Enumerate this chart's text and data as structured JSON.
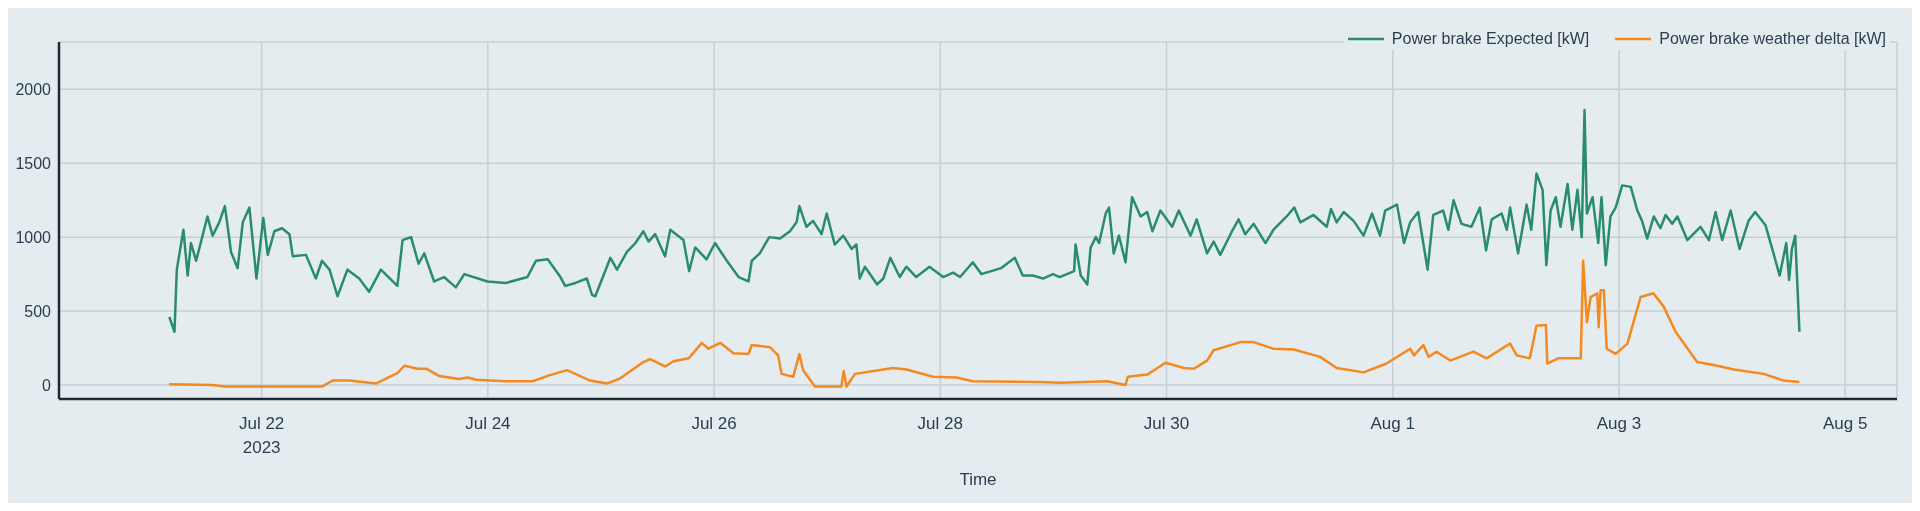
{
  "chart_data": {
    "type": "line",
    "xlabel": "Time",
    "legend": "top right",
    "grid": true,
    "line_style": "solid",
    "xlim": [
      "2023-07-20T05:00",
      "2023-08-05T11:00"
    ],
    "xticks": [
      {
        "value": "2023-07-22",
        "label": "Jul 22\n2023"
      },
      {
        "value": "2023-07-24",
        "label": "Jul 24"
      },
      {
        "value": "2023-07-26",
        "label": "Jul 26"
      },
      {
        "value": "2023-07-28",
        "label": "Jul 28"
      },
      {
        "value": "2023-07-30",
        "label": "Jul 30"
      },
      {
        "value": "2023-08-01",
        "label": "Aug 1"
      },
      {
        "value": "2023-08-03",
        "label": "Aug 3"
      },
      {
        "value": "2023-08-05",
        "label": "Aug 5"
      }
    ],
    "ylim": [
      -95,
      2320
    ],
    "yticks": [
      0,
      500,
      1000,
      1500,
      2000
    ],
    "series": [
      {
        "name": "Power brake Expected [kW]",
        "color": "#2a8c6e",
        "x": [
          "2023-07-21T04:24",
          "2023-07-21T05:30",
          "2023-07-21T06:00",
          "2023-07-21T07:24",
          "2023-07-21T08:18",
          "2023-07-21T09:00",
          "2023-07-21T10:06",
          "2023-07-21T12:30",
          "2023-07-21T13:36",
          "2023-07-21T15:00",
          "2023-07-21T16:12",
          "2023-07-21T17:30",
          "2023-07-21T18:54",
          "2023-07-21T20:00",
          "2023-07-21T21:24",
          "2023-07-21T22:54",
          "2023-07-22T00:21",
          "2023-07-22T01:18",
          "2023-07-22T02:42",
          "2023-07-22T04:18",
          "2023-07-22T05:54",
          "2023-07-22T06:36",
          "2023-07-22T09:24",
          "2023-07-22T11:30",
          "2023-07-22T12:48",
          "2023-07-22T14:24",
          "2023-07-22T16:06",
          "2023-07-22T18:12",
          "2023-07-22T20:42",
          "2023-07-22T22:48",
          "2023-07-23T01:18",
          "2023-07-23T04:48",
          "2023-07-23T05:54",
          "2023-07-23T07:42",
          "2023-07-23T09:18",
          "2023-07-23T10:30",
          "2023-07-23T12:36",
          "2023-07-23T14:42",
          "2023-07-23T17:12",
          "2023-07-23T19:00",
          "2023-07-23T23:54",
          "2023-07-24T03:48",
          "2023-07-24T08:24",
          "2023-07-24T10:12",
          "2023-07-24T12:42",
          "2023-07-24T15:24",
          "2023-07-24T16:24",
          "2023-07-24T18:36",
          "2023-07-24T21:00",
          "2023-07-24T22:06",
          "2023-07-24T22:48",
          "2023-07-25T02:00",
          "2023-07-25T03:24",
          "2023-07-25T05:30",
          "2023-07-25T07:18",
          "2023-07-25T09:00",
          "2023-07-25T10:06",
          "2023-07-25T11:30",
          "2023-07-25T13:36",
          "2023-07-25T14:42",
          "2023-07-25T17:30",
          "2023-07-25T18:42",
          "2023-07-25T20:00",
          "2023-07-25T22:24",
          "2023-07-26T00:12",
          "2023-07-26T02:42",
          "2023-07-26T05:12",
          "2023-07-26T07:18",
          "2023-07-26T08:00",
          "2023-07-26T09:42",
          "2023-07-26T11:42",
          "2023-07-26T14:00",
          "2023-07-26T16:06",
          "2023-07-26T17:30",
          "2023-07-26T18:06",
          "2023-07-26T19:36",
          "2023-07-26T21:00",
          "2023-07-26T22:48",
          "2023-07-26T23:54",
          "2023-07-27T01:36",
          "2023-07-27T03:24",
          "2023-07-27T05:12",
          "2023-07-27T06:12",
          "2023-07-27T06:54",
          "2023-07-27T08:00",
          "2023-07-27T10:36",
          "2023-07-27T11:54",
          "2023-07-27T13:24",
          "2023-07-27T15:24",
          "2023-07-27T16:48",
          "2023-07-27T18:54",
          "2023-07-27T21:42",
          "2023-07-28T00:36",
          "2023-07-28T02:42",
          "2023-07-28T04:12",
          "2023-07-28T06:54",
          "2023-07-28T08:42",
          "2023-07-28T12:54",
          "2023-07-28T15:48",
          "2023-07-28T17:30",
          "2023-07-28T19:36",
          "2023-07-28T21:48",
          "2023-07-28T23:54",
          "2023-07-29T01:18",
          "2023-07-29T04:24",
          "2023-07-29T04:42",
          "2023-07-29T05:48",
          "2023-07-29T07:12",
          "2023-07-29T07:54",
          "2023-07-29T09:00",
          "2023-07-29T09:42",
          "2023-07-29T11:06",
          "2023-07-29T11:48",
          "2023-07-29T12:48",
          "2023-07-29T13:54",
          "2023-07-29T15:18",
          "2023-07-29T16:42",
          "2023-07-29T18:30",
          "2023-07-29T19:54",
          "2023-07-29T21:00",
          "2023-07-29T22:42",
          "2023-07-30T01:12",
          "2023-07-30T02:36",
          "2023-07-30T05:06",
          "2023-07-30T06:24",
          "2023-07-30T08:36",
          "2023-07-30T10:00",
          "2023-07-30T11:24",
          "2023-07-30T13:54",
          "2023-07-30T15:18",
          "2023-07-30T16:42",
          "2023-07-30T18:30",
          "2023-07-30T21:00",
          "2023-07-30T22:42",
          "2023-07-31T01:30",
          "2023-07-31T03:06",
          "2023-07-31T04:24",
          "2023-07-31T07:12",
          "2023-07-31T10:00",
          "2023-07-31T10:54",
          "2023-07-31T12:06",
          "2023-07-31T13:36",
          "2023-07-31T15:42",
          "2023-07-31T17:48",
          "2023-07-31T19:36",
          "2023-07-31T21:18",
          "2023-07-31T22:24",
          "2023-08-01T00:54",
          "2023-08-01T02:24",
          "2023-08-01T03:42",
          "2023-08-01T05:24",
          "2023-08-01T07:24",
          "2023-08-01T08:36",
          "2023-08-01T10:42",
          "2023-08-01T11:48",
          "2023-08-01T12:54",
          "2023-08-01T14:36",
          "2023-08-01T16:42",
          "2023-08-01T18:30",
          "2023-08-01T19:48",
          "2023-08-01T21:00",
          "2023-08-01T23:06",
          "2023-08-02T00:12",
          "2023-08-02T00:54",
          "2023-08-02T02:36",
          "2023-08-02T04:24",
          "2023-08-02T05:24",
          "2023-08-02T06:30",
          "2023-08-02T07:48",
          "2023-08-02T08:36",
          "2023-08-02T09:30",
          "2023-08-02T10:36",
          "2023-08-02T11:36",
          "2023-08-02T13:06",
          "2023-08-02T14:06",
          "2023-08-02T15:12",
          "2023-08-02T16:06",
          "2023-08-02T16:42",
          "2023-08-02T17:12",
          "2023-08-02T18:24",
          "2023-08-02T19:36",
          "2023-08-02T20:18",
          "2023-08-02T21:12",
          "2023-08-02T22:12",
          "2023-08-02T23:18",
          "2023-08-03T00:42",
          "2023-08-03T02:30",
          "2023-08-03T03:54",
          "2023-08-03T04:54",
          "2023-08-03T06:00",
          "2023-08-03T07:24",
          "2023-08-03T08:48",
          "2023-08-03T09:54",
          "2023-08-03T11:18",
          "2023-08-03T12:24",
          "2023-08-03T14:30",
          "2023-08-03T17:18",
          "2023-08-03T19:06",
          "2023-08-03T20:30",
          "2023-08-03T21:54",
          "2023-08-03T23:42",
          "2023-08-04T01:36",
          "2023-08-04T03:30",
          "2023-08-04T04:54",
          "2023-08-04T07:06",
          "2023-08-04T08:48",
          "2023-08-04T10:06",
          "2023-08-04T11:30",
          "2023-08-04T12:06",
          "2023-08-04T12:42",
          "2023-08-04T13:24",
          "2023-08-04T14:18"
        ],
        "values": [
          460,
          360,
          780,
          1050,
          740,
          960,
          840,
          1140,
          1010,
          1100,
          1210,
          900,
          790,
          1100,
          1200,
          720,
          1130,
          880,
          1040,
          1060,
          1020,
          870,
          880,
          720,
          840,
          780,
          600,
          780,
          720,
          630,
          780,
          670,
          980,
          1000,
          820,
          890,
          700,
          730,
          660,
          750,
          700,
          690,
          730,
          840,
          850,
          730,
          670,
          690,
          720,
          610,
          600,
          860,
          780,
          900,
          960,
          1040,
          970,
          1020,
          870,
          1050,
          980,
          770,
          930,
          850,
          960,
          840,
          730,
          700,
          840,
          890,
          1000,
          990,
          1040,
          1100,
          1210,
          1070,
          1110,
          1020,
          1160,
          950,
          1010,
          920,
          950,
          720,
          800,
          680,
          720,
          860,
          730,
          800,
          730,
          800,
          730,
          760,
          730,
          830,
          750,
          790,
          860,
          740,
          740,
          720,
          750,
          730,
          770,
          950,
          740,
          680,
          930,
          1000,
          960,
          1160,
          1200,
          890,
          1010,
          830,
          1270,
          1140,
          1170,
          1040,
          1180,
          1070,
          1180,
          1010,
          1120,
          890,
          970,
          880,
          1040,
          1120,
          1020,
          1090,
          960,
          1050,
          1140,
          1200,
          1100,
          1150,
          1070,
          1190,
          1100,
          1170,
          1110,
          1010,
          1160,
          1010,
          1180,
          1220,
          960,
          1100,
          1170,
          780,
          1150,
          1180,
          1050,
          1250,
          1090,
          1070,
          1200,
          910,
          1120,
          1160,
          1050,
          1200,
          890,
          1220,
          1050,
          1430,
          1320,
          810,
          1180,
          1270,
          1070,
          1360,
          1050,
          1320,
          1000,
          1860,
          1160,
          1270,
          960,
          1270,
          810,
          1140,
          1200,
          1350,
          1340,
          1180,
          1110,
          990,
          1140,
          1060,
          1150,
          1090,
          1140,
          980,
          1070,
          980,
          1170,
          980,
          1180,
          920,
          1110,
          1170,
          1080,
          890,
          740,
          960,
          710,
          920,
          1010,
          360
        ]
      },
      {
        "name": "Power brake weather delta [kW]",
        "color": "#f4891f",
        "x": [
          "2023-07-21T04:24",
          "2023-07-21T13:36",
          "2023-07-21T16:06",
          "2023-07-21T22:06",
          "2023-07-22T12:54",
          "2023-07-22T15:06",
          "2023-07-22T18:36",
          "2023-07-23T00:18",
          "2023-07-23T04:48",
          "2023-07-23T06:18",
          "2023-07-23T09:06",
          "2023-07-23T10:54",
          "2023-07-23T13:42",
          "2023-07-23T17:54",
          "2023-07-23T19:42",
          "2023-07-23T21:30",
          "2023-07-24T03:48",
          "2023-07-24T09:30",
          "2023-07-24T13:00",
          "2023-07-24T16:48",
          "2023-07-24T21:42",
          "2023-07-25T01:18",
          "2023-07-25T04:06",
          "2023-07-25T09:00",
          "2023-07-25T10:24",
          "2023-07-25T13:36",
          "2023-07-25T15:24",
          "2023-07-25T18:36",
          "2023-07-25T21:24",
          "2023-07-25T22:48",
          "2023-07-26T01:18",
          "2023-07-26T04:06",
          "2023-07-26T07:18",
          "2023-07-26T08:00",
          "2023-07-26T11:54",
          "2023-07-26T13:36",
          "2023-07-26T14:18",
          "2023-07-26T16:48",
          "2023-07-26T18:06",
          "2023-07-26T18:54",
          "2023-07-26T21:24",
          "2023-07-27T03:00",
          "2023-07-27T03:30",
          "2023-07-27T04:06",
          "2023-07-27T05:54",
          "2023-07-27T14:00",
          "2023-07-27T16:48",
          "2023-07-27T22:30",
          "2023-07-28T03:24",
          "2023-07-28T06:54",
          "2023-07-28T21:00",
          "2023-07-29T01:30",
          "2023-07-29T11:24",
          "2023-07-29T15:18",
          "2023-07-29T15:48",
          "2023-07-29T19:54",
          "2023-07-29T23:48",
          "2023-07-30T03:42",
          "2023-07-30T05:48",
          "2023-07-30T08:36",
          "2023-07-30T10:00",
          "2023-07-30T15:42",
          "2023-07-30T18:30",
          "2023-07-30T22:42",
          "2023-07-31T03:00",
          "2023-07-31T08:36",
          "2023-07-31T12:06",
          "2023-07-31T17:48",
          "2023-07-31T22:42",
          "2023-08-01T03:42",
          "2023-08-01T04:30",
          "2023-08-01T06:30",
          "2023-08-01T07:36",
          "2023-08-01T09:18",
          "2023-08-01T12:12",
          "2023-08-01T17:06",
          "2023-08-01T19:54",
          "2023-08-02T00:54",
          "2023-08-02T02:18",
          "2023-08-02T05:06",
          "2023-08-02T06:30",
          "2023-08-02T08:30",
          "2023-08-02T08:48",
          "2023-08-02T11:06",
          "2023-08-02T13:06",
          "2023-08-02T15:54",
          "2023-08-02T16:24",
          "2023-08-02T17:12",
          "2023-08-02T18:00",
          "2023-08-02T19:24",
          "2023-08-02T19:42",
          "2023-08-02T20:06",
          "2023-08-02T20:48",
          "2023-08-02T21:24",
          "2023-08-02T23:18",
          "2023-08-03T01:48",
          "2023-08-03T04:36",
          "2023-08-03T07:18",
          "2023-08-03T09:30",
          "2023-08-03T12:00",
          "2023-08-03T16:36",
          "2023-08-03T20:06",
          "2023-08-04T00:24",
          "2023-08-04T06:42",
          "2023-08-04T10:54",
          "2023-08-04T14:18"
        ],
        "values": [
          5,
          0,
          -10,
          -10,
          -10,
          30,
          30,
          10,
          80,
          130,
          110,
          110,
          60,
          40,
          50,
          35,
          25,
          25,
          65,
          100,
          30,
          10,
          45,
          155,
          175,
          125,
          160,
          180,
          285,
          245,
          285,
          215,
          210,
          270,
          255,
          200,
          75,
          55,
          210,
          100,
          -10,
          -10,
          95,
          -10,
          75,
          115,
          105,
          55,
          50,
          25,
          20,
          15,
          25,
          0,
          55,
          70,
          150,
          115,
          110,
          165,
          235,
          290,
          290,
          245,
          240,
          190,
          115,
          85,
          145,
          245,
          200,
          270,
          190,
          225,
          165,
          225,
          180,
          280,
          200,
          180,
          400,
          405,
          145,
          180,
          180,
          180,
          840,
          425,
          595,
          620,
          390,
          640,
          640,
          245,
          210,
          280,
          595,
          620,
          530,
          360,
          155,
          135,
          105,
          75,
          30,
          20
        ]
      }
    ]
  }
}
